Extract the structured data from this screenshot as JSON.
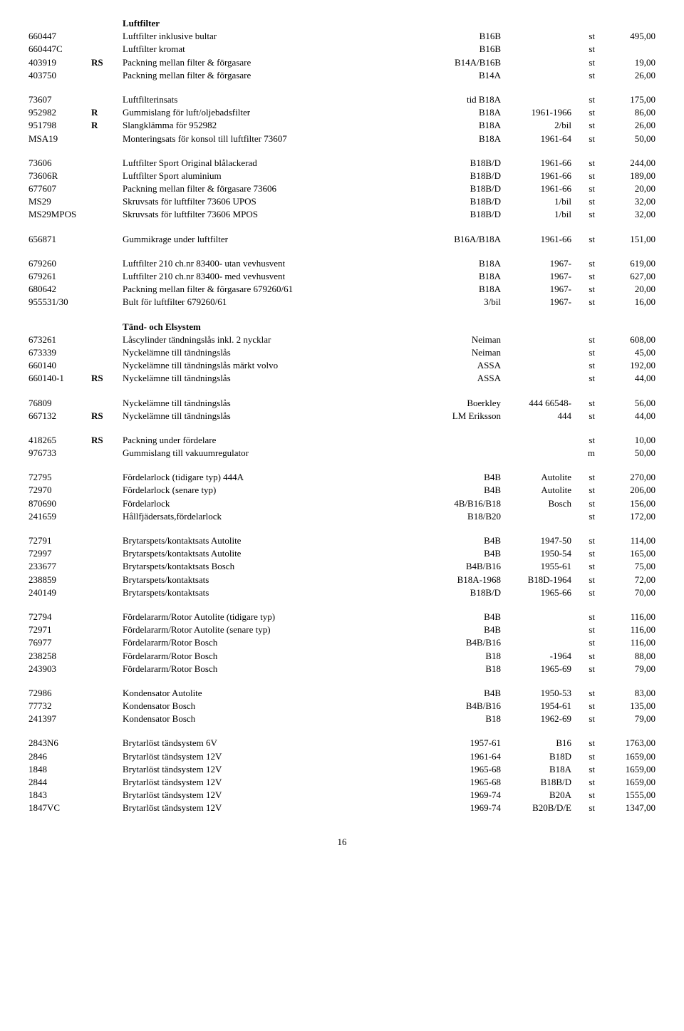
{
  "page_number": "16",
  "table": {
    "rows": [
      {
        "type": "head",
        "c3": "Luftfilter"
      },
      {
        "c1": "660447",
        "c3": "Luftfilter inklusive bultar",
        "c4": "B16B",
        "c6": "st",
        "c7": "495,00"
      },
      {
        "c1": "660447C",
        "c3": "Luftfilter kromat",
        "c4": "B16B",
        "c6": "st"
      },
      {
        "c1": "403919",
        "c2": "RS",
        "c3": "Packning mellan filter & förgasare",
        "c4": "B14A/B16B",
        "c6": "st",
        "c7": "19,00"
      },
      {
        "c1": "403750",
        "c3": "Packning mellan filter & förgasare",
        "c4": "B14A",
        "c6": "st",
        "c7": "26,00"
      },
      {
        "type": "spacer"
      },
      {
        "c1": "73607",
        "c3": "Luftfilterinsats",
        "c4": "tid B18A",
        "c6": "st",
        "c7": "175,00"
      },
      {
        "c1": "952982",
        "c2": "R",
        "c3": "Gummislang för luft/oljebadsfilter",
        "c4": "B18A",
        "c5": "1961-1966",
        "c6": "st",
        "c7": "86,00"
      },
      {
        "c1": "951798",
        "c2": "R",
        "c3": "Slangklämma för 952982",
        "c4": "B18A",
        "c5": "2/bil",
        "c6": "st",
        "c7": "26,00"
      },
      {
        "c1": "MSA19",
        "c3": "Monteringsats för konsol till luftfilter 73607",
        "c4": "B18A",
        "c5": "1961-64",
        "c6": "st",
        "c7": "50,00"
      },
      {
        "type": "spacer"
      },
      {
        "c1": "73606",
        "c3": "Luftfilter  Sport   Original blålackerad",
        "c4": "B18B/D",
        "c5": "1961-66",
        "c6": "st",
        "c7": "244,00"
      },
      {
        "c1": "73606R",
        "c3": "Luftfilter Sport     aluminium",
        "c4": "B18B/D",
        "c5": "1961-66",
        "c6": "st",
        "c7": "189,00"
      },
      {
        "c1": "677607",
        "c3": "Packning mellan filter & förgasare 73606",
        "c4": "B18B/D",
        "c5": "1961-66",
        "c6": "st",
        "c7": "20,00"
      },
      {
        "c1": "MS29",
        "c3": "Skruvsats för luftfilter 73606 UPOS",
        "c4": "B18B/D",
        "c5": "1/bil",
        "c6": "st",
        "c7": "32,00"
      },
      {
        "c1": "MS29MPOS",
        "c3": "Skruvsats för luftfilter 73606 MPOS",
        "c4": "B18B/D",
        "c5": "1/bil",
        "c6": "st",
        "c7": "32,00"
      },
      {
        "type": "spacer"
      },
      {
        "c1": "656871",
        "c3": "Gummikrage under luftfilter",
        "c4": "B16A/B18A",
        "c5": "1961-66",
        "c6": "st",
        "c7": "151,00"
      },
      {
        "type": "spacer"
      },
      {
        "c1": "679260",
        "c3": "Luftfilter  210 ch.nr 83400- utan vevhusvent",
        "c4": "B18A",
        "c5": "1967-",
        "c6": "st",
        "c7": "619,00"
      },
      {
        "c1": "679261",
        "c3": "Luftfilter  210 ch.nr 83400- med vevhusvent",
        "c4": "B18A",
        "c5": "1967-",
        "c6": "st",
        "c7": "627,00"
      },
      {
        "c1": "680642",
        "c3": "Packning mellan filter & förgasare 679260/61",
        "c4": "B18A",
        "c5": "1967-",
        "c6": "st",
        "c7": "20,00"
      },
      {
        "c1": "955531/30",
        "c3": "Bult för luftfilter 679260/61",
        "c4": "3/bil",
        "c5": "1967-",
        "c6": "st",
        "c7": "16,00"
      },
      {
        "type": "spacer"
      },
      {
        "type": "head",
        "c3": "Tänd- och Elsystem"
      },
      {
        "c1": "673261",
        "c3": "Låscylinder tändningslås inkl. 2 nycklar",
        "c4": "Neiman",
        "c6": "st",
        "c7": "608,00"
      },
      {
        "c1": "673339",
        "c3": "Nyckelämne till tändningslås",
        "c4": "Neiman",
        "c6": "st",
        "c7": "45,00"
      },
      {
        "c1": "660140",
        "c3": "Nyckelämne till tändningslås  märkt volvo",
        "c4": "ASSA",
        "c6": "st",
        "c7": "192,00"
      },
      {
        "c1": "660140-1",
        "c2": "RS",
        "c3": "Nyckelämne till tändningslås",
        "c4": "ASSA",
        "c6": "st",
        "c7": "44,00"
      },
      {
        "type": "spacer"
      },
      {
        "c1": "76809",
        "c3": "Nyckelämne till tändningslås",
        "c4": "Boerkley",
        "c5": "444 66548-",
        "c6": "st",
        "c7": "56,00"
      },
      {
        "c1": "667132",
        "c2": "RS",
        "c3": "Nyckelämne till tändningslås",
        "c4": "LM Eriksson",
        "c5": "444",
        "c6": "st",
        "c7": "44,00"
      },
      {
        "type": "spacer"
      },
      {
        "c1": "418265",
        "c2": "RS",
        "c3": "Packning under fördelare",
        "c6": "st",
        "c7": "10,00"
      },
      {
        "c1": "976733",
        "c3": "Gummislang till vakuumregulator",
        "c6": "m",
        "c7": "50,00"
      },
      {
        "type": "spacer"
      },
      {
        "c1": "72795",
        "c3": "Fördelarlock     (tidigare typ)   444A",
        "c4": "B4B",
        "c5": "Autolite",
        "c6": "st",
        "c7": "270,00"
      },
      {
        "c1": "72970",
        "c3": "Fördelarlock     (senare typ)",
        "c4": "B4B",
        "c5": "Autolite",
        "c6": "st",
        "c7": "206,00"
      },
      {
        "c1": "870690",
        "c3": "Fördelarlock",
        "c4": "4B/B16/B18",
        "c5": "Bosch",
        "c6": "st",
        "c7": "156,00"
      },
      {
        "c1": "241659",
        "c3": "Hållfjädersats,fördelarlock",
        "c4": "B18/B20",
        "c6": "st",
        "c7": "172,00"
      },
      {
        "type": "spacer"
      },
      {
        "c1": "72791",
        "c3": "Brytarspets/kontaktsats    Autolite",
        "c4": "B4B",
        "c5": "1947-50",
        "c6": "st",
        "c7": "114,00"
      },
      {
        "c1": "72997",
        "c3": "Brytarspets/kontaktsats    Autolite",
        "c4": "B4B",
        "c5": "1950-54",
        "c6": "st",
        "c7": "165,00"
      },
      {
        "c1": "233677",
        "c3": "Brytarspets/kontaktsats    Bosch",
        "c4": "B4B/B16",
        "c5": "1955-61",
        "c6": "st",
        "c7": "75,00"
      },
      {
        "c1": "238859",
        "c3": "Brytarspets/kontaktsats",
        "c4": "B18A-1968",
        "c5": "B18D-1964",
        "c6": "st",
        "c7": "72,00"
      },
      {
        "c1": "240149",
        "c3": "Brytarspets/kontaktsats",
        "c4": "B18B/D",
        "c5": "1965-66",
        "c6": "st",
        "c7": "70,00"
      },
      {
        "type": "spacer"
      },
      {
        "c1": "72794",
        "c3": "Fördelararm/Rotor             Autolite (tidigare typ)",
        "c4": "B4B",
        "c6": "st",
        "c7": "116,00"
      },
      {
        "c1": "72971",
        "c3": "Fördelararm/Rotor             Autolite (senare typ)",
        "c4": "B4B",
        "c6": "st",
        "c7": "116,00"
      },
      {
        "c1": "76977",
        "c3": "Fördelararm/Rotor             Bosch",
        "c4": "B4B/B16",
        "c6": "st",
        "c7": "116,00"
      },
      {
        "c1": "238258",
        "c3": "Fördelararm/Rotor             Bosch",
        "c4": "B18",
        "c5": "-1964",
        "c6": "st",
        "c7": "88,00"
      },
      {
        "c1": "243903",
        "c3": "Fördelararm/Rotor             Bosch",
        "c4": "B18",
        "c5": "1965-69",
        "c6": "st",
        "c7": "79,00"
      },
      {
        "type": "spacer"
      },
      {
        "c1": "72986",
        "c3": "Kondensator                       Autolite",
        "c4": "B4B",
        "c5": "1950-53",
        "c6": "st",
        "c7": "83,00"
      },
      {
        "c1": "77732",
        "c3": "Kondensator                       Bosch",
        "c4": "B4B/B16",
        "c5": "1954-61",
        "c6": "st",
        "c7": "135,00"
      },
      {
        "c1": "241397",
        "c3": "Kondensator                       Bosch",
        "c4": "B18",
        "c5": "1962-69",
        "c6": "st",
        "c7": "79,00"
      },
      {
        "type": "spacer"
      },
      {
        "c1": "2843N6",
        "c3": "Brytarlöst tändsystem  6V",
        "c4": "1957-61",
        "c5": "B16",
        "c6": "st",
        "c7": "1763,00"
      },
      {
        "c1": "2846",
        "c3": "Brytarlöst tändsystem 12V",
        "c4": "1961-64",
        "c5": "B18D",
        "c6": "st",
        "c7": "1659,00"
      },
      {
        "c1": "1848",
        "c3": "Brytarlöst tändsystem 12V",
        "c4": "1965-68",
        "c5": "B18A",
        "c6": "st",
        "c7": "1659,00"
      },
      {
        "c1": "2844",
        "c3": "Brytarlöst tändsystem 12V",
        "c4": "1965-68",
        "c5": "B18B/D",
        "c6": "st",
        "c7": "1659,00"
      },
      {
        "c1": "1843",
        "c3": "Brytarlöst tändsystem 12V",
        "c4": "1969-74",
        "c5": "B20A",
        "c6": "st",
        "c7": "1555,00"
      },
      {
        "c1": "1847VC",
        "c3": "Brytarlöst tändsystem 12V",
        "c4": "1969-74",
        "c5": "B20B/D/E",
        "c6": "st",
        "c7": "1347,00"
      }
    ]
  }
}
